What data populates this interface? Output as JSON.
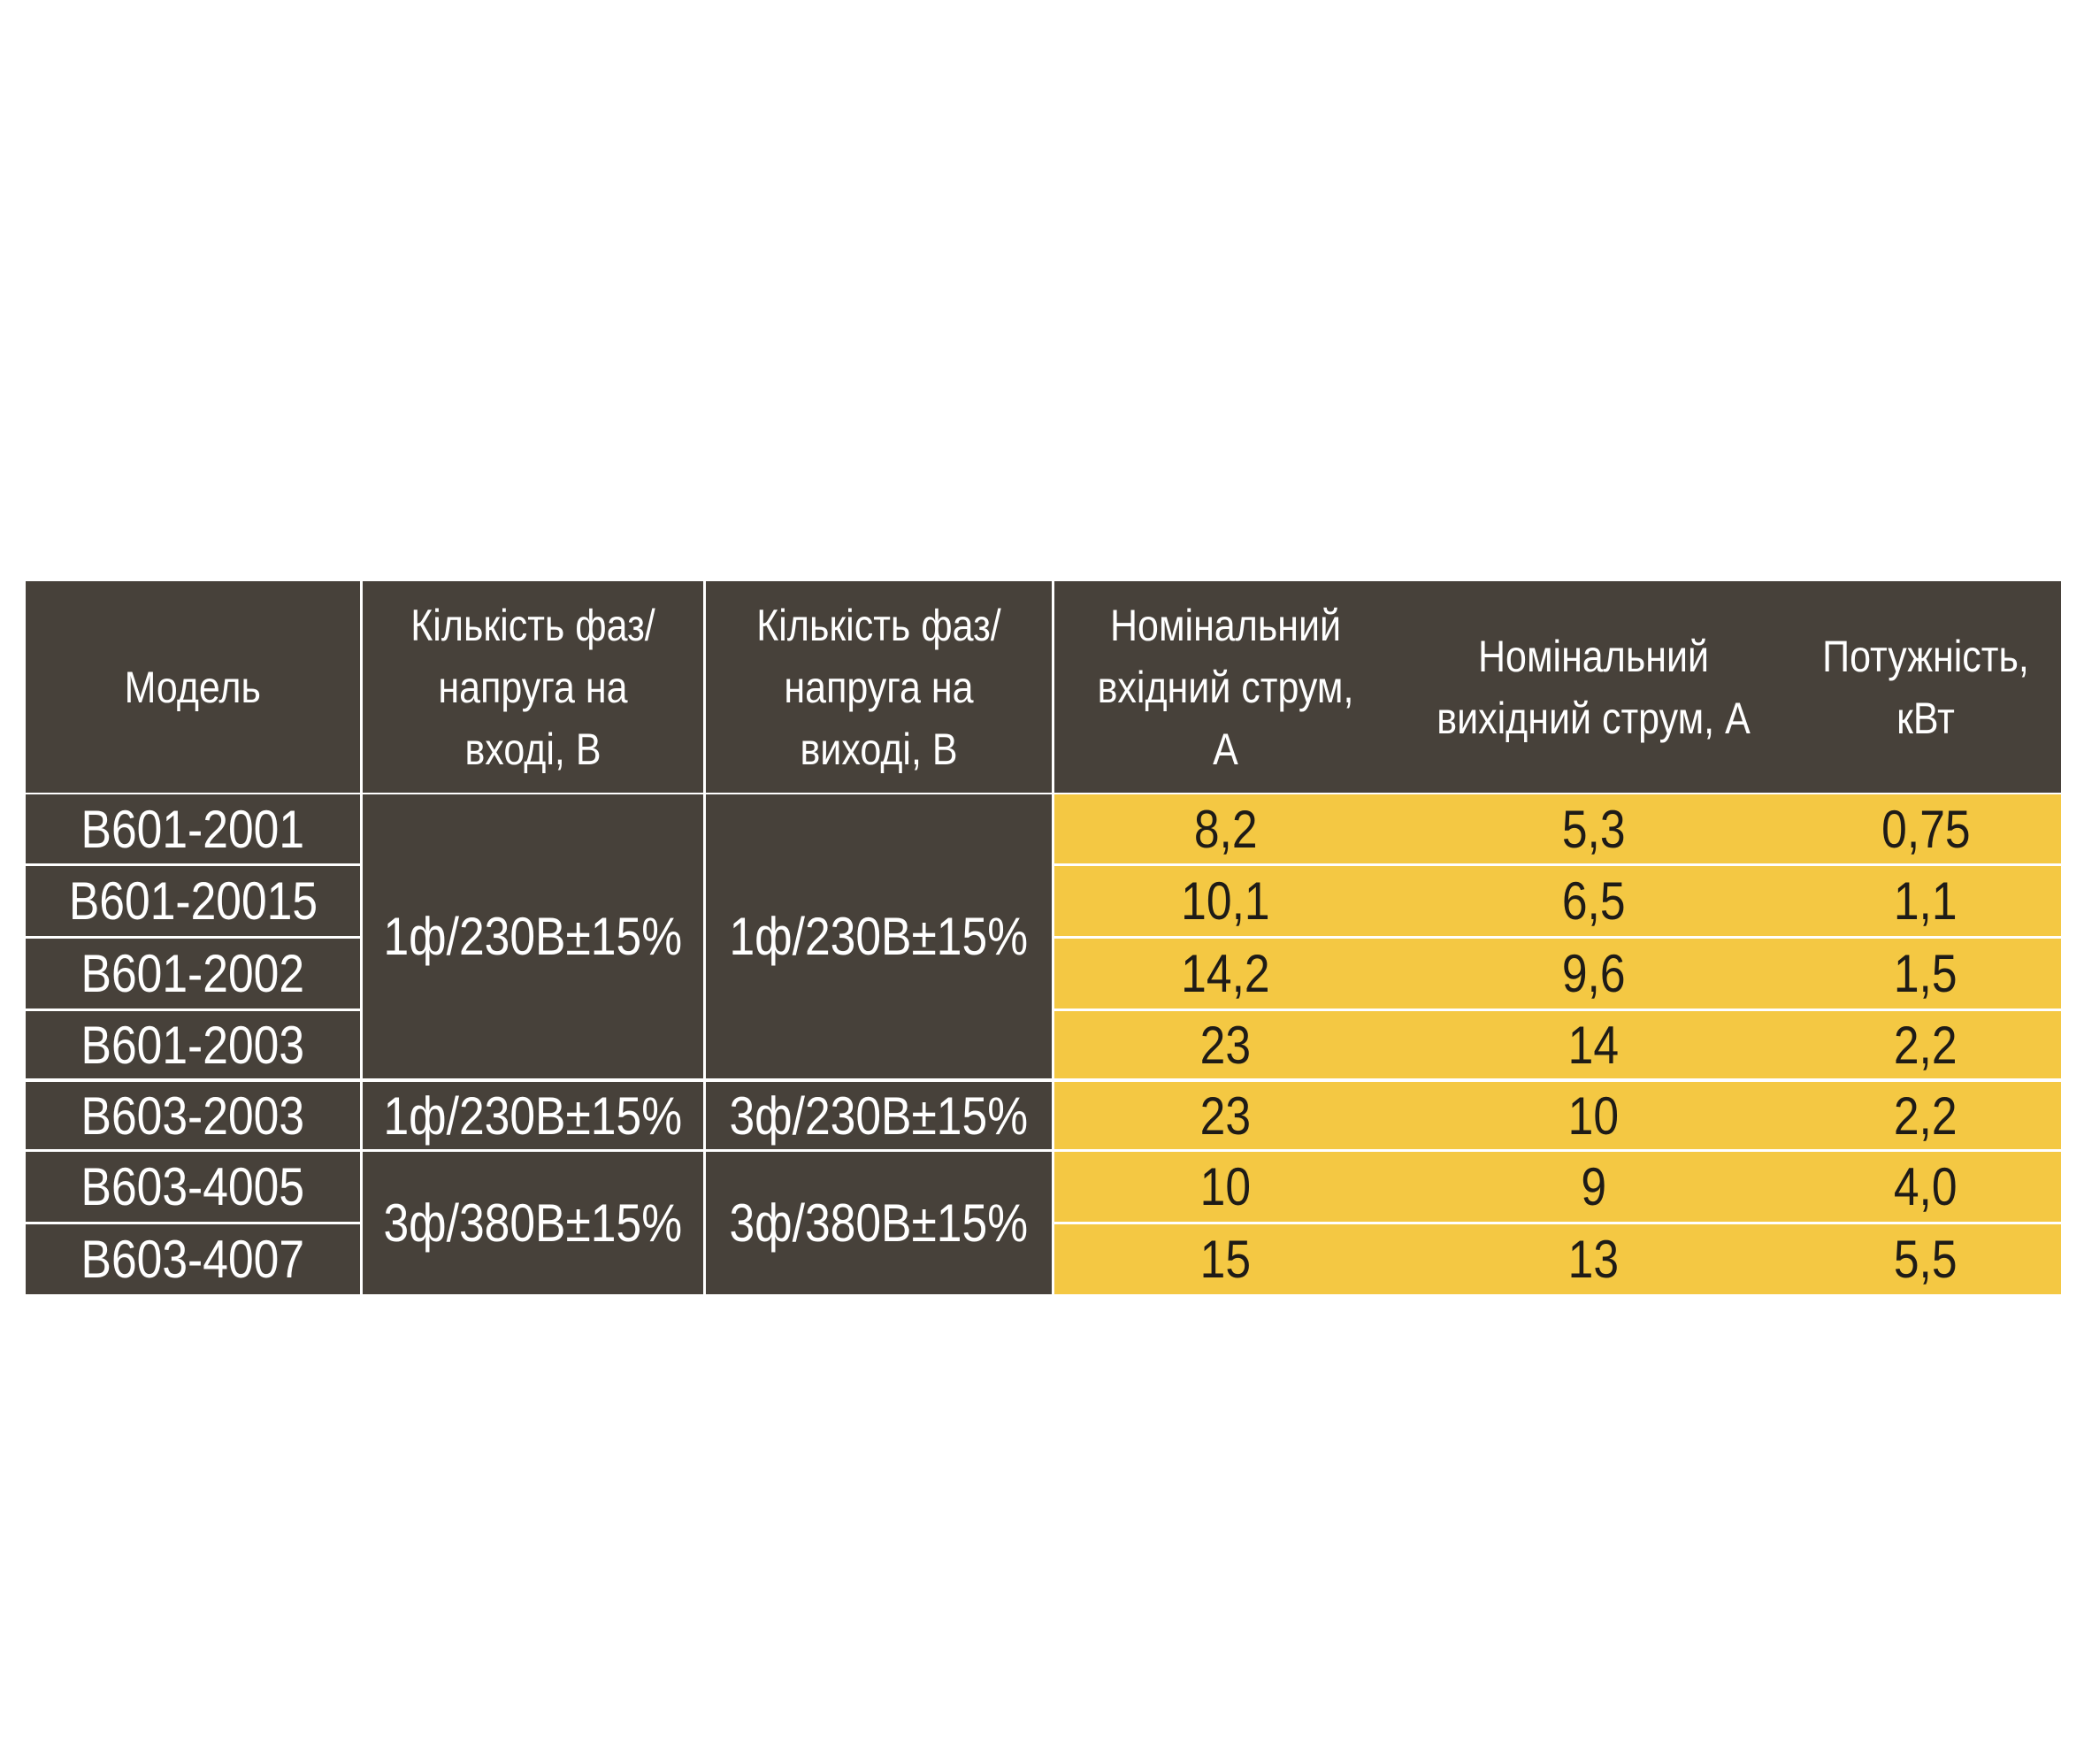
{
  "table": {
    "headers": [
      "Модель",
      "Кількість фаз/напруга на вході, В",
      "Кількість фаз/напруга на виході, В",
      "Номінальний вхідний струм, А",
      "Номінальний вихідний струм, А",
      "Потужність, кВт"
    ],
    "groups": [
      {
        "input": "1ф/230В±15%",
        "output": "1ф/230В±15%",
        "rows": [
          [
            "В601-2001",
            "8,2",
            "5,3",
            "0,75"
          ],
          [
            "В601-20015",
            "10,1",
            "6,5",
            "1,1"
          ],
          [
            "В601-2002",
            "14,2",
            "9,6",
            "1,5"
          ],
          [
            "В601-2003",
            "23",
            "14",
            "2,2"
          ]
        ]
      },
      {
        "input": "1ф/230В±15%",
        "output": "3ф/230В±15%",
        "rows": [
          [
            "В603-2003",
            "23",
            "10",
            "2,2"
          ]
        ]
      },
      {
        "input": "3ф/380В±15%",
        "output": "3ф/380В±15%",
        "rows": [
          [
            "В603-4005",
            "10",
            "9",
            "4,0"
          ],
          [
            "В603-4007",
            "15",
            "13",
            "5,5"
          ]
        ]
      }
    ]
  }
}
